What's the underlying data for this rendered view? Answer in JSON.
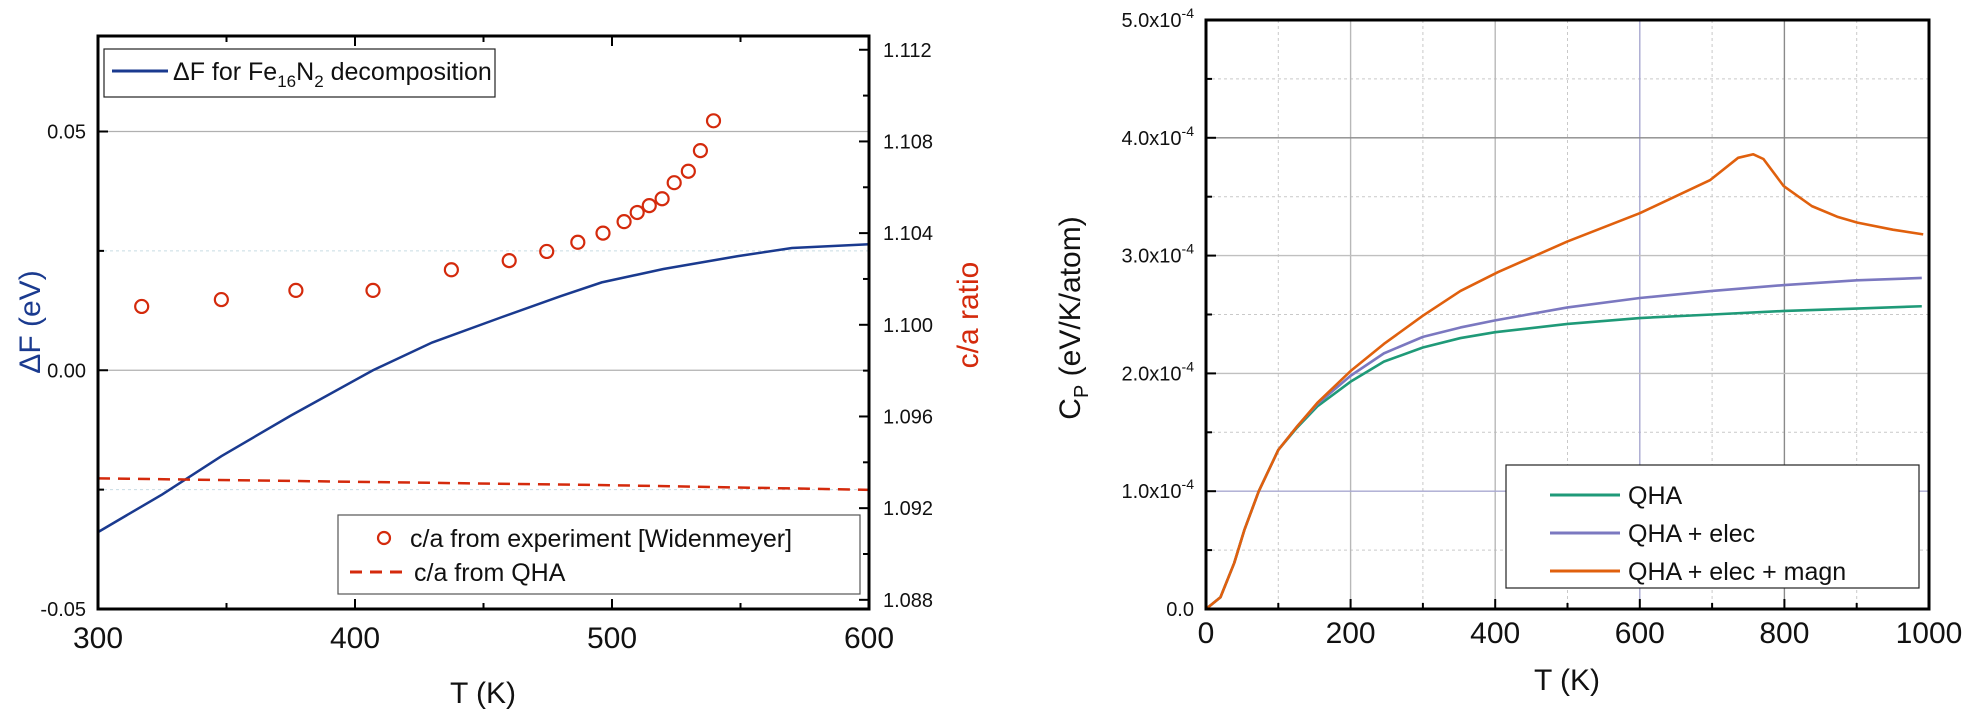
{
  "chart_data": [
    {
      "id": "left",
      "type": "line",
      "xlabel": "T (K)",
      "ylabel_left": "ΔF (eV)",
      "ylabel_right": "c/a ratio",
      "xlim": [
        300,
        600
      ],
      "ylim_left": [
        -0.05,
        0.07
      ],
      "ylim_right": [
        1.0876,
        1.1126
      ],
      "xticks": [
        300,
        400,
        500,
        600
      ],
      "xtick_labels": [
        "300",
        "400",
        "500",
        "600"
      ],
      "yticks_left": [
        -0.05,
        0.0,
        0.05
      ],
      "ytick_labels_left": [
        "-0.05",
        "0.00",
        "0.05"
      ],
      "yticks_right": [
        1.088,
        1.092,
        1.096,
        1.1,
        1.104,
        1.108,
        1.112
      ],
      "ytick_labels_right": [
        "1.088",
        "1.092",
        "1.096",
        "1.100",
        "1.104",
        "1.108",
        "1.112"
      ],
      "grid": "horizontal",
      "colors": {
        "deltaF": "#1a3a8f",
        "ca": "#d42a0c",
        "left_axis_label": "#1a3a8f",
        "right_axis_label": "#d42a0c"
      },
      "series": [
        {
          "name": "ΔF for Fe16N2 decomposition",
          "legend": {
            "prefix": "ΔF for Fe",
            "sub1": "16",
            "mid": "N",
            "sub2": "2",
            "suffix": " decomposition"
          },
          "axis": "left",
          "style": "solid",
          "x": [
            300,
            325,
            348,
            375,
            407,
            430,
            457,
            480,
            496,
            520,
            549,
            570,
            600
          ],
          "y": [
            -0.0339,
            -0.026,
            -0.018,
            -0.0095,
            0.0,
            0.0058,
            0.0111,
            0.0155,
            0.0184,
            0.0212,
            0.0239,
            0.0256,
            0.0264
          ]
        },
        {
          "name": "c/a from experiment [Widenmeyer]",
          "axis": "right",
          "style": "markers-circle",
          "x": [
            317,
            348,
            377,
            407,
            437.5,
            460,
            474.6,
            486.7,
            496.5,
            504.7,
            509.8,
            514.5,
            519.5,
            524.2,
            529.7,
            534.4,
            539.5
          ],
          "y": [
            1.1008,
            1.1011,
            1.1015,
            1.1015,
            1.1024,
            1.1028,
            1.1032,
            1.1036,
            1.104,
            1.1045,
            1.1049,
            1.1052,
            1.1055,
            1.1062,
            1.1067,
            1.1076,
            1.1089
          ]
        },
        {
          "name": "c/a from QHA",
          "axis": "right",
          "style": "dashed",
          "x": [
            300,
            400,
            500,
            600
          ],
          "y": [
            1.0933,
            1.09315,
            1.093,
            1.0928
          ]
        }
      ],
      "legend_top": [
        "ΔF for Fe16N2 decomposition"
      ],
      "legend_bottom": [
        "c/a from experiment [Widenmeyer]",
        "c/a from QHA"
      ]
    },
    {
      "id": "right",
      "type": "line",
      "xlabel": "T (K)",
      "ylabel": {
        "main": "C",
        "sub": "P",
        "rest": " (eV/K/atom)"
      },
      "xlim": [
        0,
        1000
      ],
      "ylim": [
        0,
        0.0005
      ],
      "xticks": [
        0,
        200,
        400,
        600,
        800,
        1000
      ],
      "xtick_labels": [
        "0",
        "200",
        "400",
        "600",
        "800",
        "1000"
      ],
      "yticks": [
        0,
        0.0001,
        0.0002,
        0.0003,
        0.0004,
        0.0005
      ],
      "ytick_labels": [
        {
          "mant": "0.0",
          "exp": ""
        },
        {
          "mant": "1.0x10",
          "exp": "-4"
        },
        {
          "mant": "2.0x10",
          "exp": "-4"
        },
        {
          "mant": "3.0x10",
          "exp": "-4"
        },
        {
          "mant": "4.0x10",
          "exp": "-4"
        },
        {
          "mant": "5.0x10",
          "exp": "-4"
        }
      ],
      "grid": "both",
      "legend_placement": "bottom-right",
      "series": [
        {
          "name": "QHA",
          "color": "#1f9a78",
          "x": [
            0,
            20,
            39,
            53,
            73,
            100,
            126,
            154,
            200,
            246,
            300,
            352,
            400,
            500,
            600,
            700,
            800,
            900,
            990
          ],
          "y": [
            0,
            1e-05,
            3.9e-05,
            6.7e-05,
            0.0001,
            0.000135,
            0.000154,
            0.000172,
            0.000193,
            0.00021,
            0.000222,
            0.00023,
            0.000235,
            0.000242,
            0.000247,
            0.00025,
            0.000253,
            0.000255,
            0.000257
          ]
        },
        {
          "name": "QHA + elec",
          "color": "#7b78c0",
          "x": [
            0,
            20,
            39,
            53,
            73,
            100,
            126,
            154,
            200,
            246,
            300,
            352,
            400,
            500,
            600,
            700,
            800,
            900,
            990
          ],
          "y": [
            0,
            1e-05,
            3.9e-05,
            6.7e-05,
            0.0001,
            0.000135,
            0.000155,
            0.000174,
            0.000198,
            0.000217,
            0.000231,
            0.000239,
            0.000245,
            0.000256,
            0.000264,
            0.00027,
            0.000275,
            0.000279,
            0.000281
          ]
        },
        {
          "name": "QHA + elec + magn",
          "color": "#e0600d",
          "x": [
            0,
            20,
            39,
            53,
            73,
            100,
            126,
            154,
            200,
            246,
            300,
            352,
            404,
            500,
            600,
            697,
            736,
            757,
            771,
            799,
            838,
            873,
            901,
            950,
            992
          ],
          "y": [
            0,
            1e-05,
            3.9e-05,
            6.7e-05,
            0.0001,
            0.000135,
            0.000155,
            0.000175,
            0.000202,
            0.000225,
            0.000249,
            0.00027,
            0.000286,
            0.000312,
            0.000336,
            0.000364,
            0.000383,
            0.000386,
            0.000382,
            0.000359,
            0.000342,
            0.000333,
            0.000328,
            0.000322,
            0.000318
          ]
        }
      ]
    }
  ]
}
